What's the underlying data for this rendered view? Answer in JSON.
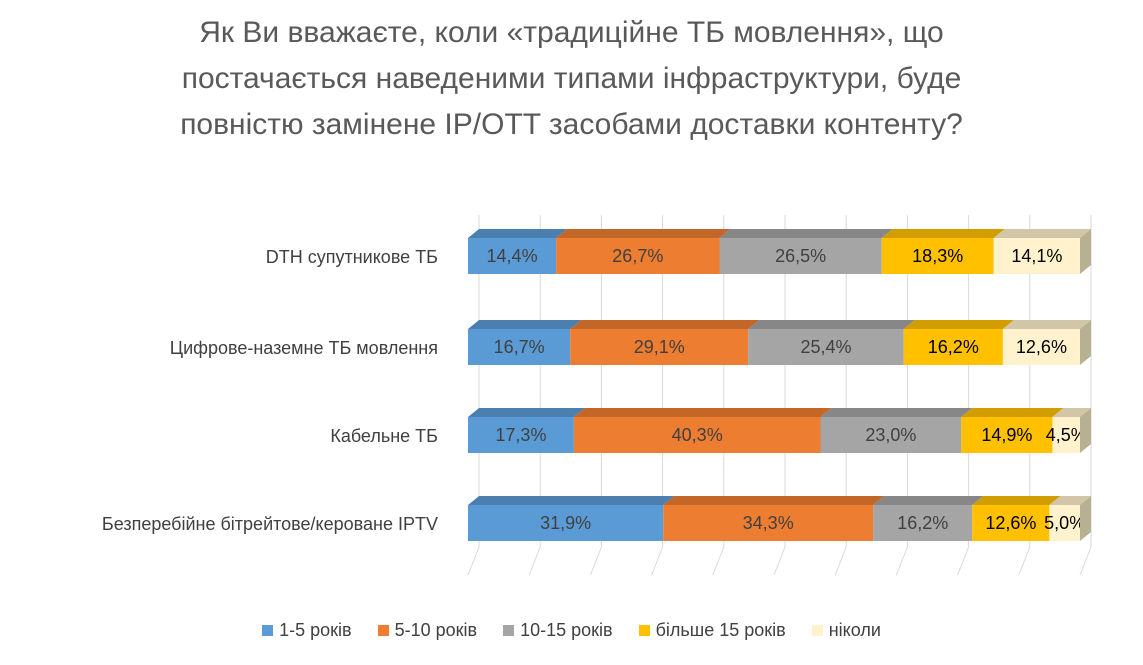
{
  "chart_data": {
    "type": "bar",
    "orientation": "horizontal-stacked-percent",
    "title_lines": [
      "Як Ви вважаєте, коли «традиційне ТБ мовлення», що",
      "постачається наведеними типами інфраструктури, буде",
      "повністю замінене IP/OTT засобами доставки контенту?"
    ],
    "categories": [
      "DTH супутникове ТБ",
      "Цифрове-наземне ТБ мовлення",
      "Кабельне ТБ",
      "Безперебійне бітрейтове/кероване IPTV"
    ],
    "series": [
      {
        "name": "1-5 років",
        "color": "#5B9BD5",
        "values": [
          14.4,
          16.7,
          17.3,
          31.9
        ],
        "labels": [
          "14,4%",
          "16,7%",
          "17,3%",
          "31,9%"
        ]
      },
      {
        "name": "5-10 років",
        "color": "#ED7D31",
        "values": [
          26.7,
          29.1,
          40.3,
          34.3
        ],
        "labels": [
          "26,7%",
          "29,1%",
          "40,3%",
          "34,3%"
        ]
      },
      {
        "name": "10-15 років",
        "color": "#A5A5A5",
        "values": [
          26.5,
          25.4,
          23.0,
          16.2
        ],
        "labels": [
          "26,5%",
          "25,4%",
          "23,0%",
          "16,2%"
        ]
      },
      {
        "name": "більше 15 років",
        "color": "#FFC000",
        "values": [
          18.3,
          16.2,
          14.9,
          12.6
        ],
        "labels": [
          "18,3%",
          "16,2%",
          "14,9%",
          "12,6%"
        ]
      },
      {
        "name": "ніколи",
        "color": "#FFF2CC",
        "values": [
          14.1,
          12.6,
          4.5,
          5.0
        ],
        "labels": [
          "14,1%",
          "12,6%",
          "4,5%",
          "5,0%"
        ]
      }
    ],
    "xlim": [
      0,
      100
    ],
    "grid": true,
    "legend_position": "bottom"
  }
}
